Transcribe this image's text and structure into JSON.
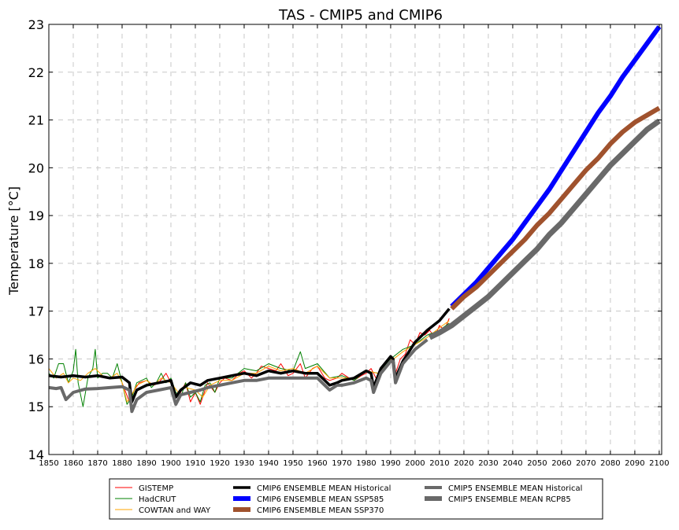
{
  "chart_data": {
    "type": "line",
    "title": "TAS - CMIP5 and CMIP6",
    "xlabel": "",
    "ylabel": "Temperature [°C]",
    "xlim": [
      1850,
      2101
    ],
    "ylim": [
      14,
      23
    ],
    "x_ticks": [
      "1850",
      "1860",
      "1870",
      "1880",
      "1890",
      "1900",
      "1910",
      "1920",
      "1930",
      "1940",
      "1950",
      "1960",
      "1970",
      "1980",
      "1990",
      "2000",
      "2010",
      "2020",
      "2030",
      "2040",
      "2050",
      "2060",
      "2070",
      "2080",
      "2090",
      "2100"
    ],
    "y_ticks": [
      "14",
      "15",
      "16",
      "17",
      "18",
      "19",
      "20",
      "21",
      "22",
      "23"
    ],
    "grid": true,
    "legend_position": "bottom-center, outside plot",
    "series": [
      {
        "name": "GISTEMP",
        "color": "#ff0000",
        "width": 1,
        "x": [
          1880,
          1883,
          1885,
          1887,
          1890,
          1893,
          1895,
          1898,
          1900,
          1902,
          1904,
          1906,
          1908,
          1910,
          1912,
          1915,
          1918,
          1920,
          1922,
          1925,
          1928,
          1930,
          1933,
          1935,
          1937,
          1940,
          1943,
          1945,
          1948,
          1950,
          1953,
          1955,
          1958,
          1960,
          1963,
          1965,
          1968,
          1970,
          1973,
          1975,
          1978,
          1980,
          1982,
          1984,
          1986,
          1988,
          1990,
          1992,
          1994,
          1996,
          1998,
          2000,
          2002,
          2004,
          2006,
          2008,
          2010,
          2012,
          2014
        ],
        "y": [
          15.5,
          15.1,
          15.35,
          15.5,
          15.55,
          15.45,
          15.5,
          15.7,
          15.5,
          15.2,
          15.3,
          15.5,
          15.1,
          15.3,
          15.05,
          15.5,
          15.3,
          15.5,
          15.6,
          15.55,
          15.7,
          15.75,
          15.6,
          15.7,
          15.85,
          15.8,
          15.75,
          15.9,
          15.65,
          15.7,
          15.9,
          15.6,
          15.8,
          15.85,
          15.6,
          15.55,
          15.6,
          15.7,
          15.6,
          15.55,
          15.65,
          15.7,
          15.8,
          15.6,
          15.75,
          15.9,
          16.0,
          15.7,
          16.0,
          16.1,
          16.4,
          16.3,
          16.55,
          16.5,
          16.6,
          16.45,
          16.7,
          16.6,
          16.85
        ]
      },
      {
        "name": "HadCRUT",
        "color": "#008000",
        "width": 1,
        "x": [
          1850,
          1852,
          1854,
          1856,
          1858,
          1860,
          1861,
          1862,
          1864,
          1866,
          1868,
          1869,
          1870,
          1872,
          1874,
          1876,
          1878,
          1880,
          1882,
          1884,
          1886,
          1888,
          1890,
          1892,
          1894,
          1896,
          1898,
          1900,
          1902,
          1904,
          1906,
          1908,
          1910,
          1912,
          1914,
          1916,
          1918,
          1920,
          1925,
          1930,
          1935,
          1940,
          1945,
          1950,
          1953,
          1955,
          1960,
          1965,
          1970,
          1975,
          1980,
          1985,
          1990,
          1995,
          2000,
          2005,
          2010,
          2014
        ],
        "y": [
          15.7,
          15.6,
          15.9,
          15.9,
          15.5,
          15.75,
          16.2,
          15.5,
          15.0,
          15.6,
          15.8,
          16.2,
          15.6,
          15.7,
          15.7,
          15.6,
          15.9,
          15.5,
          15.05,
          15.2,
          15.5,
          15.55,
          15.6,
          15.4,
          15.5,
          15.7,
          15.5,
          15.6,
          15.3,
          15.2,
          15.5,
          15.2,
          15.3,
          15.1,
          15.45,
          15.5,
          15.3,
          15.6,
          15.6,
          15.8,
          15.75,
          15.9,
          15.8,
          15.75,
          16.15,
          15.8,
          15.9,
          15.6,
          15.65,
          15.55,
          15.75,
          15.7,
          16.0,
          16.2,
          16.3,
          16.5,
          16.6,
          16.75
        ]
      },
      {
        "name": "COWTAN and WAY",
        "color": "#ffa500",
        "width": 1,
        "x": [
          1850,
          1853,
          1856,
          1858,
          1860,
          1863,
          1866,
          1869,
          1872,
          1875,
          1878,
          1880,
          1882,
          1884,
          1886,
          1888,
          1890,
          1893,
          1896,
          1900,
          1903,
          1906,
          1910,
          1913,
          1916,
          1920,
          1925,
          1930,
          1935,
          1940,
          1945,
          1950,
          1955,
          1960,
          1965,
          1970,
          1975,
          1980,
          1985,
          1990,
          1995,
          2000,
          2005,
          2010,
          2014
        ],
        "y": [
          15.8,
          15.6,
          15.7,
          15.5,
          15.6,
          15.55,
          15.7,
          15.8,
          15.65,
          15.6,
          15.7,
          15.5,
          15.1,
          15.25,
          15.45,
          15.5,
          15.55,
          15.45,
          15.6,
          15.5,
          15.3,
          15.4,
          15.35,
          15.2,
          15.45,
          15.55,
          15.55,
          15.7,
          15.7,
          15.85,
          15.75,
          15.8,
          15.7,
          15.85,
          15.6,
          15.6,
          15.6,
          15.75,
          15.7,
          15.95,
          16.15,
          16.3,
          16.45,
          16.65,
          16.8
        ]
      },
      {
        "name": "CMIP6 ENSEMBLE MEAN Historical",
        "color": "#000000",
        "width": 3.5,
        "x": [
          1850,
          1855,
          1860,
          1865,
          1870,
          1875,
          1880,
          1883,
          1884,
          1886,
          1890,
          1895,
          1900,
          1902,
          1904,
          1908,
          1912,
          1915,
          1920,
          1925,
          1930,
          1935,
          1940,
          1945,
          1950,
          1955,
          1960,
          1963,
          1965,
          1968,
          1970,
          1975,
          1980,
          1982,
          1983,
          1986,
          1990,
          1991,
          1992,
          1995,
          2000,
          2005,
          2010,
          2014
        ],
        "y": [
          15.65,
          15.62,
          15.65,
          15.62,
          15.65,
          15.6,
          15.62,
          15.5,
          15.1,
          15.35,
          15.45,
          15.5,
          15.55,
          15.2,
          15.35,
          15.5,
          15.45,
          15.55,
          15.6,
          15.65,
          15.7,
          15.65,
          15.75,
          15.7,
          15.75,
          15.7,
          15.7,
          15.55,
          15.45,
          15.5,
          15.55,
          15.6,
          15.75,
          15.7,
          15.4,
          15.8,
          16.05,
          16.0,
          15.6,
          15.95,
          16.35,
          16.6,
          16.8,
          17.05
        ]
      },
      {
        "name": "CMIP6 ENSEMBLE MEAN SSP585",
        "color": "#0000ff",
        "width": 6,
        "x": [
          2015,
          2020,
          2025,
          2030,
          2035,
          2040,
          2045,
          2050,
          2055,
          2060,
          2065,
          2070,
          2075,
          2080,
          2085,
          2090,
          2095,
          2100
        ],
        "y": [
          17.1,
          17.35,
          17.6,
          17.9,
          18.2,
          18.5,
          18.85,
          19.2,
          19.55,
          19.95,
          20.35,
          20.75,
          21.15,
          21.5,
          21.9,
          22.25,
          22.6,
          22.95
        ]
      },
      {
        "name": "CMIP6 ENSEMBLE MEAN SSP370",
        "color": "#a0522d",
        "width": 6,
        "x": [
          2015,
          2020,
          2025,
          2030,
          2035,
          2040,
          2045,
          2050,
          2055,
          2060,
          2065,
          2070,
          2075,
          2080,
          2085,
          2090,
          2095,
          2100
        ],
        "y": [
          17.05,
          17.3,
          17.5,
          17.75,
          18.0,
          18.25,
          18.5,
          18.8,
          19.05,
          19.35,
          19.65,
          19.95,
          20.2,
          20.5,
          20.75,
          20.95,
          21.1,
          21.25
        ]
      },
      {
        "name": "CMIP5 ENSEMBLE MEAN Historical",
        "color": "#696969",
        "width": 4,
        "x": [
          1850,
          1853,
          1855,
          1857,
          1860,
          1865,
          1870,
          1875,
          1880,
          1883,
          1884,
          1886,
          1890,
          1895,
          1900,
          1902,
          1904,
          1908,
          1912,
          1915,
          1920,
          1925,
          1930,
          1935,
          1940,
          1945,
          1950,
          1955,
          1960,
          1963,
          1965,
          1968,
          1970,
          1975,
          1980,
          1982,
          1983,
          1986,
          1990,
          1991,
          1992,
          1995,
          2000,
          2005
        ],
        "y": [
          15.4,
          15.38,
          15.4,
          15.15,
          15.3,
          15.37,
          15.38,
          15.4,
          15.42,
          15.35,
          14.9,
          15.15,
          15.3,
          15.35,
          15.4,
          15.05,
          15.25,
          15.3,
          15.35,
          15.4,
          15.45,
          15.5,
          15.55,
          15.55,
          15.6,
          15.6,
          15.6,
          15.6,
          15.6,
          15.45,
          15.35,
          15.45,
          15.45,
          15.5,
          15.6,
          15.55,
          15.3,
          15.7,
          15.95,
          15.95,
          15.5,
          15.9,
          16.2,
          16.4
        ]
      },
      {
        "name": "CMIP5 ENSEMBLE MEAN RCP85",
        "color": "#696969",
        "width": 7,
        "x": [
          2006,
          2010,
          2015,
          2020,
          2025,
          2030,
          2035,
          2040,
          2045,
          2050,
          2055,
          2060,
          2065,
          2070,
          2075,
          2080,
          2085,
          2090,
          2095,
          2100
        ],
        "y": [
          16.45,
          16.55,
          16.7,
          16.9,
          17.1,
          17.3,
          17.55,
          17.8,
          18.05,
          18.3,
          18.6,
          18.85,
          19.15,
          19.45,
          19.75,
          20.05,
          20.3,
          20.55,
          20.8,
          20.98
        ]
      }
    ]
  }
}
